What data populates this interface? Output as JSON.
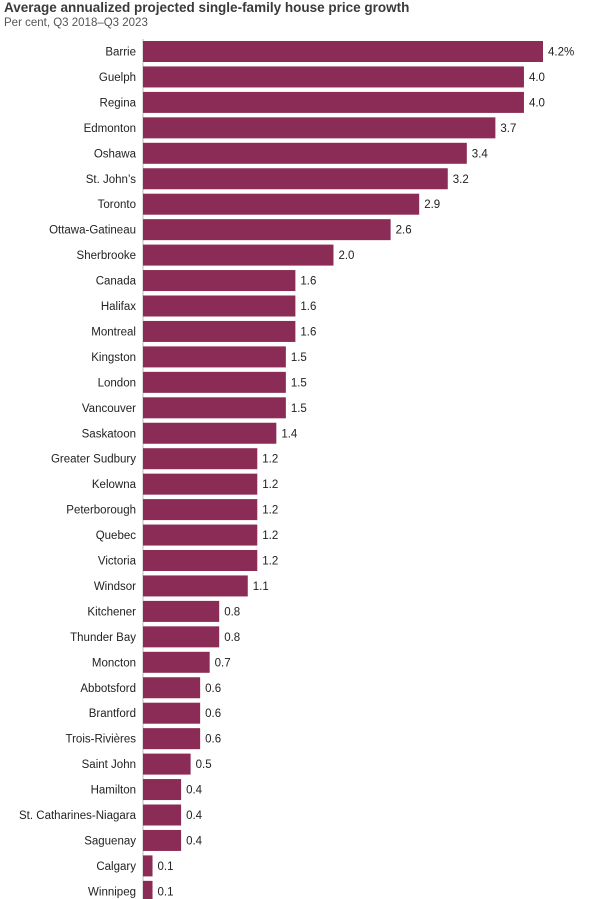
{
  "chart_data": {
    "type": "bar",
    "orientation": "horizontal",
    "title": "Average annualized projected single-family house price growth",
    "subtitle": "Per cent, Q3 2018–Q3 2023",
    "categories": [
      "Barrie",
      "Guelph",
      "Regina",
      "Edmonton",
      "Oshawa",
      "St. John’s",
      "Toronto",
      "Ottawa-Gatineau",
      "Sherbrooke",
      "Canada",
      "Halifax",
      "Montreal",
      "Kingston",
      "London",
      "Vancouver",
      "Saskatoon",
      "Greater Sudbury",
      "Kelowna",
      "Peterborough",
      "Quebec",
      "Victoria",
      "Windsor",
      "Kitchener",
      "Thunder Bay",
      "Moncton",
      "Abbotsford",
      "Brantford",
      "Trois-Rivières",
      "Saint John",
      "Hamilton",
      "St. Catharines-Niagara",
      "Saguenay",
      "Calgary",
      "Winnipeg"
    ],
    "values": [
      4.2,
      4.0,
      4.0,
      3.7,
      3.4,
      3.2,
      2.9,
      2.6,
      2.0,
      1.6,
      1.6,
      1.6,
      1.5,
      1.5,
      1.5,
      1.4,
      1.2,
      1.2,
      1.2,
      1.2,
      1.2,
      1.1,
      0.8,
      0.8,
      0.7,
      0.6,
      0.6,
      0.6,
      0.5,
      0.4,
      0.4,
      0.4,
      0.1,
      0.1
    ],
    "value_labels": [
      "4.2%",
      "4.0",
      "4.0",
      "3.7",
      "3.4",
      "3.2",
      "2.9",
      "2.6",
      "2.0",
      "1.6",
      "1.6",
      "1.6",
      "1.5",
      "1.5",
      "1.5",
      "1.4",
      "1.2",
      "1.2",
      "1.2",
      "1.2",
      "1.2",
      "1.1",
      "0.8",
      "0.8",
      "0.7",
      "0.6",
      "0.6",
      "0.6",
      "0.5",
      "0.4",
      "0.4",
      "0.4",
      "0.1",
      "0.1"
    ],
    "xlim": [
      0,
      4.2
    ],
    "grid": false,
    "colors": {
      "bar": "#8a2c55",
      "axis": "#bbbbbb"
    }
  }
}
